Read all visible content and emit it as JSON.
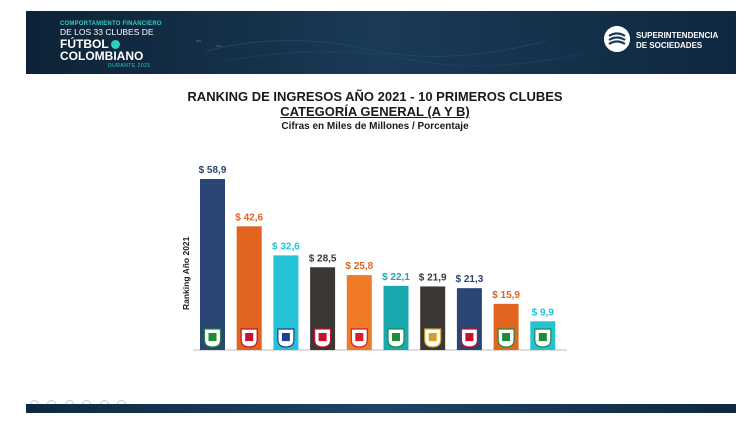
{
  "header": {
    "logo_line1": "COMPORTAMIENTO FINANCIERO",
    "logo_line2": "DE LOS 33 CLUBES DE",
    "logo_line3": "FÚTBOL",
    "logo_line4": "COLOMBIANO",
    "logo_line5": "DURANTE 2021",
    "agency_line1": "SUPERINTENDENCIA",
    "agency_line2": "DE SOCIEDADES"
  },
  "chart_data": {
    "type": "bar",
    "title": "RANKING DE INGRESOS AÑO 2021 - 10 PRIMEROS CLUBES",
    "subtitle": "CATEGORÍA GENERAL (A Y B)",
    "units_note": "Cifras en Miles de Millones / Porcentaje",
    "ylabel": "Ranking Año 2021",
    "xlabel": "",
    "values": [
      58.9,
      42.6,
      32.6,
      28.5,
      25.8,
      22.1,
      21.9,
      21.3,
      15.9,
      9.9
    ],
    "labels": [
      "$ 58,9",
      "$ 42,6",
      "$ 32,6",
      "$ 28,5",
      "$ 25,8",
      "$ 22,1",
      "$ 21,9",
      "$ 21,3",
      "$ 15,9",
      "$ 9,9"
    ],
    "colors": [
      "#2b4674",
      "#e2641f",
      "#23c2d6",
      "#3b3735",
      "#ef7b28",
      "#1aa8b0",
      "#3b3735",
      "#2b4674",
      "#e2641f",
      "#23c2d6"
    ],
    "label_colors": [
      "#2b4674",
      "#e2641f",
      "#23c2d6",
      "#3b3735",
      "#e2641f",
      "#1aa8b0",
      "#3b3735",
      "#2b4674",
      "#e2641f",
      "#23c2d6"
    ],
    "badge_colors": [
      "#1e8a3c",
      "#c8102e",
      "#1c3f94",
      "#c8102e",
      "#d81e2b",
      "#1e8a3c",
      "#d5a021",
      "#c8102e",
      "#1e8a3c",
      "#1e8a3c"
    ],
    "grid": false,
    "legend": "none"
  }
}
